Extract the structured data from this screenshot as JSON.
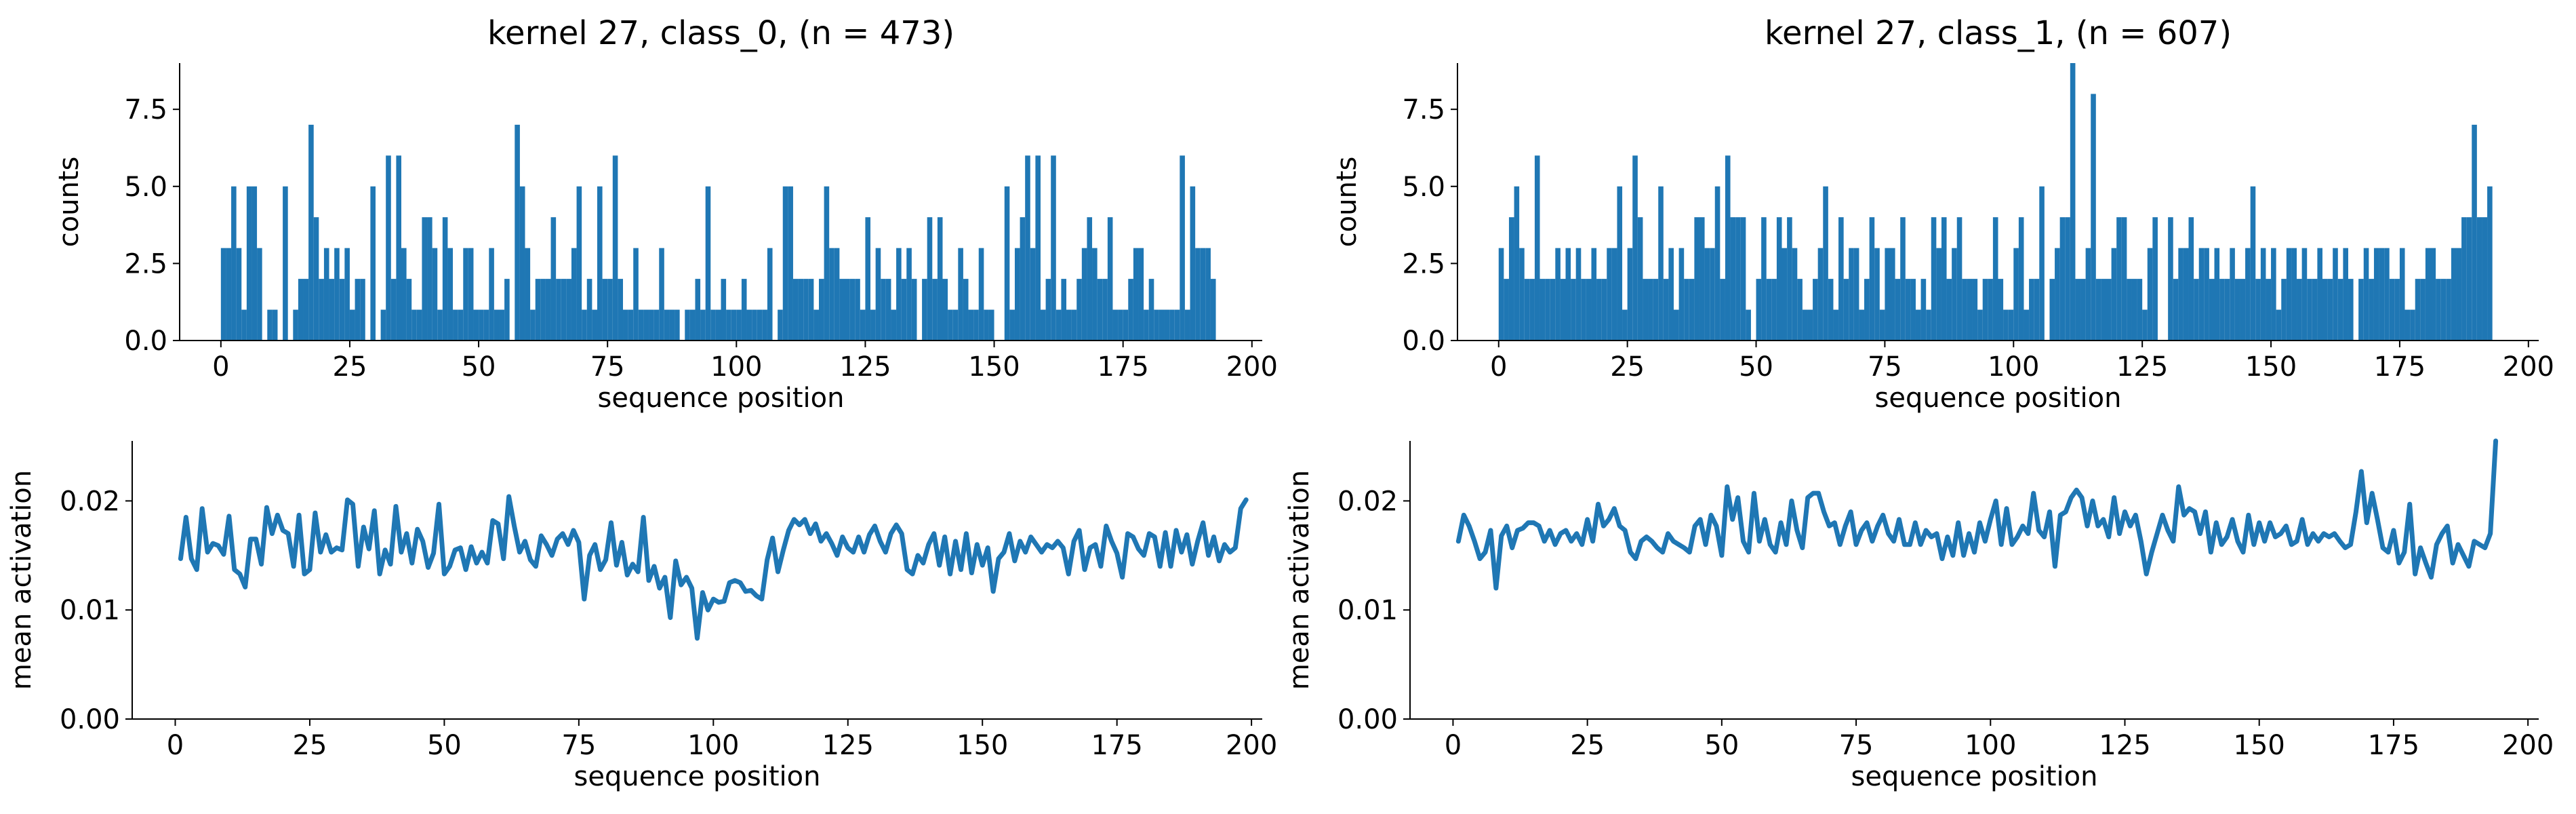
{
  "colors": {
    "series": "#1f77b4",
    "axis": "#000000"
  },
  "chart_data": [
    {
      "type": "bar",
      "title": "kernel 27, class_0, (n = 473)",
      "xlabel": "sequence position",
      "ylabel": "counts",
      "xlim": [
        -8,
        202
      ],
      "ylim": [
        0,
        9
      ],
      "xticks": [
        0,
        25,
        50,
        75,
        100,
        125,
        150,
        175,
        200
      ],
      "xtick_labels": [
        "0",
        "25",
        "50",
        "75",
        "100",
        "125",
        "150",
        "175",
        "200"
      ],
      "yticks": [
        0,
        2.5,
        5,
        7.5
      ],
      "ytick_labels": [
        "0.0",
        "2.5",
        "5.0",
        "7.5"
      ],
      "grid": false,
      "x": [
        0,
        1,
        2,
        3,
        4,
        5,
        6,
        7,
        8,
        9,
        10,
        11,
        12,
        13,
        14,
        15,
        16,
        17,
        18,
        19,
        20,
        21,
        22,
        23,
        24,
        25,
        26,
        27,
        28,
        29,
        30,
        31,
        32,
        33,
        34,
        35,
        36,
        37,
        38,
        39,
        40,
        41,
        42,
        43,
        44,
        45,
        46,
        47,
        48,
        49,
        50,
        51,
        52,
        53,
        54,
        55,
        56,
        57,
        58,
        59,
        60,
        61,
        62,
        63,
        64,
        65,
        66,
        67,
        68,
        69,
        70,
        71,
        72,
        73,
        74,
        75,
        76,
        77,
        78,
        79,
        80,
        81,
        82,
        83,
        84,
        85,
        86,
        87,
        88,
        89,
        90,
        91,
        92,
        93,
        94,
        95,
        96,
        97,
        98,
        99,
        100,
        101,
        102,
        103,
        104,
        105,
        106,
        107,
        108,
        109,
        110,
        111,
        112,
        113,
        114,
        115,
        116,
        117,
        118,
        119,
        120,
        121,
        122,
        123,
        124,
        125,
        126,
        127,
        128,
        129,
        130,
        131,
        132,
        133,
        134,
        135,
        136,
        137,
        138,
        139,
        140,
        141,
        142,
        143,
        144,
        145,
        146,
        147,
        148,
        149,
        150,
        151,
        152,
        153,
        154,
        155,
        156,
        157,
        158,
        159,
        160,
        161,
        162,
        163,
        164,
        165,
        166,
        167,
        168,
        169,
        170,
        171,
        172,
        173,
        174,
        175,
        176,
        177,
        178,
        179,
        180,
        181,
        182,
        183,
        184,
        185,
        186,
        187,
        188,
        189,
        190,
        191,
        192
      ],
      "values": [
        3,
        3,
        5,
        3,
        1,
        5,
        5,
        3,
        0,
        1,
        1,
        0,
        5,
        0,
        1,
        2,
        2,
        7,
        4,
        2,
        3,
        2,
        3,
        2,
        3,
        1,
        2,
        2,
        0,
        5,
        0,
        1,
        6,
        2,
        6,
        3,
        2,
        1,
        1,
        4,
        4,
        3,
        1,
        4,
        3,
        1,
        1,
        3,
        3,
        1,
        1,
        1,
        3,
        1,
        1,
        2,
        0,
        7,
        5,
        3,
        1,
        2,
        2,
        2,
        4,
        2,
        2,
        2,
        3,
        5,
        1,
        2,
        1,
        5,
        2,
        2,
        6,
        2,
        1,
        1,
        3,
        1,
        1,
        1,
        1,
        3,
        1,
        1,
        1,
        0,
        1,
        1,
        2,
        1,
        5,
        1,
        1,
        2,
        1,
        1,
        1,
        2,
        1,
        1,
        1,
        1,
        3,
        0,
        1,
        5,
        5,
        2,
        2,
        2,
        2,
        1,
        2,
        5,
        3,
        3,
        2,
        2,
        2,
        2,
        1,
        4,
        1,
        3,
        2,
        2,
        1,
        3,
        2,
        3,
        2,
        0,
        2,
        4,
        2,
        4,
        2,
        1,
        1,
        3,
        2,
        1,
        1,
        3,
        1,
        1,
        0,
        0,
        5,
        1,
        3,
        4,
        6,
        3,
        6,
        1,
        2,
        6,
        1,
        2,
        1,
        1,
        2,
        3,
        4,
        3,
        2,
        2,
        4,
        1,
        1,
        1,
        2,
        3,
        3,
        1,
        2,
        1,
        1,
        1,
        1,
        1,
        6,
        1,
        5,
        3,
        3,
        3,
        2
      ],
      "bar_width": 1
    },
    {
      "type": "bar",
      "title": "kernel 27, class_1, (n = 607)",
      "xlabel": "sequence position",
      "ylabel": "counts",
      "xlim": [
        -8,
        202
      ],
      "ylim": [
        0,
        9
      ],
      "xticks": [
        0,
        25,
        50,
        75,
        100,
        125,
        150,
        175,
        200
      ],
      "xtick_labels": [
        "0",
        "25",
        "50",
        "75",
        "100",
        "125",
        "150",
        "175",
        "200"
      ],
      "yticks": [
        0,
        2.5,
        5,
        7.5
      ],
      "ytick_labels": [
        "0.0",
        "2.5",
        "5.0",
        "7.5"
      ],
      "grid": false,
      "x": [
        0,
        1,
        2,
        3,
        4,
        5,
        6,
        7,
        8,
        9,
        10,
        11,
        12,
        13,
        14,
        15,
        16,
        17,
        18,
        19,
        20,
        21,
        22,
        23,
        24,
        25,
        26,
        27,
        28,
        29,
        30,
        31,
        32,
        33,
        34,
        35,
        36,
        37,
        38,
        39,
        40,
        41,
        42,
        43,
        44,
        45,
        46,
        47,
        48,
        49,
        50,
        51,
        52,
        53,
        54,
        55,
        56,
        57,
        58,
        59,
        60,
        61,
        62,
        63,
        64,
        65,
        66,
        67,
        68,
        69,
        70,
        71,
        72,
        73,
        74,
        75,
        76,
        77,
        78,
        79,
        80,
        81,
        82,
        83,
        84,
        85,
        86,
        87,
        88,
        89,
        90,
        91,
        92,
        93,
        94,
        95,
        96,
        97,
        98,
        99,
        100,
        101,
        102,
        103,
        104,
        105,
        106,
        107,
        108,
        109,
        110,
        111,
        112,
        113,
        114,
        115,
        116,
        117,
        118,
        119,
        120,
        121,
        122,
        123,
        124,
        125,
        126,
        127,
        128,
        129,
        130,
        131,
        132,
        133,
        134,
        135,
        136,
        137,
        138,
        139,
        140,
        141,
        142,
        143,
        144,
        145,
        146,
        147,
        148,
        149,
        150,
        151,
        152,
        153,
        154,
        155,
        156,
        157,
        158,
        159,
        160,
        161,
        162,
        163,
        164,
        165,
        166,
        167,
        168,
        169,
        170,
        171,
        172,
        173,
        174,
        175,
        176,
        177,
        178,
        179,
        180,
        181,
        182,
        183,
        184,
        185,
        186,
        187,
        188,
        189,
        190,
        191,
        192
      ],
      "values": [
        3,
        2,
        4,
        5,
        3,
        2,
        2,
        6,
        2,
        2,
        2,
        3,
        2,
        3,
        2,
        3,
        2,
        2,
        3,
        2,
        2,
        3,
        3,
        5,
        1,
        3,
        6,
        4,
        2,
        2,
        2,
        5,
        2,
        3,
        1,
        3,
        2,
        2,
        4,
        4,
        3,
        3,
        5,
        2,
        6,
        4,
        4,
        4,
        1,
        0,
        2,
        4,
        2,
        2,
        4,
        3,
        4,
        3,
        2,
        1,
        1,
        2,
        3,
        5,
        2,
        1,
        4,
        2,
        3,
        3,
        1,
        2,
        4,
        3,
        1,
        3,
        3,
        2,
        4,
        2,
        2,
        1,
        2,
        1,
        4,
        3,
        4,
        2,
        3,
        4,
        2,
        2,
        2,
        1,
        2,
        2,
        4,
        2,
        1,
        1,
        3,
        4,
        1,
        2,
        2,
        5,
        0,
        2,
        3,
        4,
        4,
        9,
        2,
        2,
        3,
        8,
        2,
        2,
        2,
        3,
        4,
        4,
        2,
        2,
        2,
        1,
        3,
        4,
        0,
        0,
        4,
        2,
        3,
        3,
        4,
        2,
        3,
        3,
        2,
        3,
        2,
        2,
        3,
        2,
        2,
        3,
        5,
        2,
        3,
        2,
        3,
        1,
        2,
        3,
        3,
        2,
        3,
        2,
        2,
        3,
        2,
        2,
        3,
        2,
        3,
        2,
        0,
        2,
        3,
        2,
        3,
        3,
        3,
        2,
        2,
        3,
        1,
        1,
        2,
        2,
        3,
        3,
        2,
        2,
        2,
        3,
        3,
        4,
        4,
        7,
        4,
        4,
        5
      ]
    },
    {
      "type": "line",
      "title": "",
      "xlabel": "sequence position",
      "ylabel": "mean activation",
      "xlim": [
        -8,
        202
      ],
      "ylim": [
        0,
        0.0255
      ],
      "xticks": [
        0,
        25,
        50,
        75,
        100,
        125,
        150,
        175,
        200
      ],
      "xtick_labels": [
        "0",
        "25",
        "50",
        "75",
        "100",
        "125",
        "150",
        "175",
        "200"
      ],
      "yticks": [
        0,
        0.01,
        0.02
      ],
      "ytick_labels": [
        "0.00",
        "0.01",
        "0.02"
      ],
      "grid": false,
      "x_start": 1,
      "y": [
        0.0147,
        0.0185,
        0.0147,
        0.0137,
        0.0193,
        0.0153,
        0.0161,
        0.0159,
        0.0151,
        0.0186,
        0.0137,
        0.0133,
        0.0121,
        0.0165,
        0.0165,
        0.0142,
        0.0194,
        0.017,
        0.0187,
        0.0173,
        0.017,
        0.014,
        0.0187,
        0.0133,
        0.0137,
        0.0189,
        0.0153,
        0.0169,
        0.0153,
        0.0157,
        0.0155,
        0.0201,
        0.0197,
        0.014,
        0.0176,
        0.0156,
        0.0191,
        0.0133,
        0.0155,
        0.0142,
        0.0195,
        0.0153,
        0.017,
        0.0143,
        0.0174,
        0.0163,
        0.0139,
        0.0152,
        0.0197,
        0.0133,
        0.014,
        0.0155,
        0.0157,
        0.0137,
        0.0158,
        0.0143,
        0.0153,
        0.0143,
        0.0182,
        0.0179,
        0.0147,
        0.0204,
        0.0177,
        0.0153,
        0.0163,
        0.0146,
        0.014,
        0.0168,
        0.016,
        0.015,
        0.0165,
        0.017,
        0.016,
        0.0173,
        0.0162,
        0.011,
        0.015,
        0.016,
        0.0137,
        0.0146,
        0.018,
        0.0141,
        0.0162,
        0.0132,
        0.0142,
        0.0135,
        0.0185,
        0.0127,
        0.014,
        0.012,
        0.013,
        0.0093,
        0.0145,
        0.0123,
        0.013,
        0.012,
        0.0074,
        0.0116,
        0.01,
        0.011,
        0.0107,
        0.0108,
        0.0125,
        0.0127,
        0.0125,
        0.0117,
        0.0118,
        0.0113,
        0.011,
        0.0146,
        0.0166,
        0.0135,
        0.0155,
        0.0173,
        0.0183,
        0.0178,
        0.0183,
        0.017,
        0.0179,
        0.0163,
        0.017,
        0.0161,
        0.015,
        0.0167,
        0.0157,
        0.0153,
        0.0167,
        0.0153,
        0.0169,
        0.0177,
        0.0163,
        0.0153,
        0.017,
        0.0178,
        0.017,
        0.0137,
        0.0133,
        0.015,
        0.0143,
        0.016,
        0.017,
        0.0141,
        0.0167,
        0.0133,
        0.0163,
        0.0137,
        0.017,
        0.0134,
        0.016,
        0.0141,
        0.0157,
        0.0117,
        0.0147,
        0.0153,
        0.017,
        0.0145,
        0.0163,
        0.0153,
        0.0167,
        0.016,
        0.0153,
        0.016,
        0.0157,
        0.0163,
        0.0157,
        0.0133,
        0.0163,
        0.0173,
        0.0137,
        0.0157,
        0.016,
        0.014,
        0.0177,
        0.0163,
        0.0152,
        0.013,
        0.017,
        0.0167,
        0.0156,
        0.015,
        0.017,
        0.0167,
        0.014,
        0.0171,
        0.014,
        0.0173,
        0.0153,
        0.0169,
        0.0142,
        0.0163,
        0.018,
        0.015,
        0.0167,
        0.0145,
        0.016,
        0.0153,
        0.0157,
        0.0193,
        0.0201
      ]
    },
    {
      "type": "line",
      "title": "",
      "xlabel": "sequence position",
      "ylabel": "mean activation",
      "xlim": [
        -8,
        202
      ],
      "ylim": [
        0,
        0.0255
      ],
      "xticks": [
        0,
        25,
        50,
        75,
        100,
        125,
        150,
        175,
        200
      ],
      "xtick_labels": [
        "0",
        "25",
        "50",
        "75",
        "100",
        "125",
        "150",
        "175",
        "200"
      ],
      "yticks": [
        0,
        0.01,
        0.02
      ],
      "ytick_labels": [
        "0.00",
        "0.01",
        "0.02"
      ],
      "grid": false,
      "x_start": 1,
      "y": [
        0.0163,
        0.0187,
        0.0177,
        0.0163,
        0.0147,
        0.0153,
        0.0173,
        0.012,
        0.0168,
        0.0177,
        0.0157,
        0.0173,
        0.0175,
        0.018,
        0.018,
        0.0177,
        0.0163,
        0.0173,
        0.016,
        0.017,
        0.0173,
        0.0163,
        0.017,
        0.016,
        0.0183,
        0.0163,
        0.0197,
        0.0177,
        0.0183,
        0.0193,
        0.0177,
        0.0173,
        0.0153,
        0.0147,
        0.0163,
        0.0167,
        0.0163,
        0.0157,
        0.0153,
        0.017,
        0.0163,
        0.016,
        0.0157,
        0.0153,
        0.0177,
        0.0183,
        0.016,
        0.0187,
        0.0177,
        0.015,
        0.0213,
        0.0183,
        0.0203,
        0.0163,
        0.0153,
        0.0207,
        0.0163,
        0.0183,
        0.016,
        0.0153,
        0.018,
        0.016,
        0.02,
        0.0173,
        0.0157,
        0.0203,
        0.0207,
        0.0207,
        0.019,
        0.0177,
        0.018,
        0.016,
        0.0177,
        0.019,
        0.016,
        0.0173,
        0.018,
        0.0163,
        0.0177,
        0.0187,
        0.017,
        0.0163,
        0.0183,
        0.016,
        0.016,
        0.018,
        0.016,
        0.0173,
        0.0167,
        0.017,
        0.0147,
        0.0167,
        0.015,
        0.018,
        0.015,
        0.017,
        0.0153,
        0.018,
        0.0163,
        0.0183,
        0.02,
        0.016,
        0.0193,
        0.016,
        0.0167,
        0.0177,
        0.017,
        0.0207,
        0.0173,
        0.0167,
        0.019,
        0.014,
        0.0187,
        0.019,
        0.0203,
        0.021,
        0.0203,
        0.0177,
        0.02,
        0.0177,
        0.0183,
        0.0167,
        0.0203,
        0.017,
        0.019,
        0.0177,
        0.0187,
        0.0163,
        0.0133,
        0.0153,
        0.017,
        0.0187,
        0.0173,
        0.0163,
        0.0213,
        0.0187,
        0.0193,
        0.019,
        0.017,
        0.019,
        0.0153,
        0.018,
        0.016,
        0.0167,
        0.0183,
        0.0163,
        0.0153,
        0.0187,
        0.016,
        0.018,
        0.0163,
        0.018,
        0.0167,
        0.017,
        0.0177,
        0.016,
        0.0163,
        0.0183,
        0.016,
        0.017,
        0.0163,
        0.017,
        0.0167,
        0.017,
        0.0163,
        0.0157,
        0.016,
        0.019,
        0.0227,
        0.018,
        0.0207,
        0.0183,
        0.0157,
        0.0153,
        0.0173,
        0.0143,
        0.0153,
        0.0197,
        0.0133,
        0.0157,
        0.0143,
        0.013,
        0.016,
        0.017,
        0.0177,
        0.0143,
        0.016,
        0.015,
        0.014,
        0.0163,
        0.016,
        0.0157,
        0.017,
        0.0255
      ]
    }
  ]
}
